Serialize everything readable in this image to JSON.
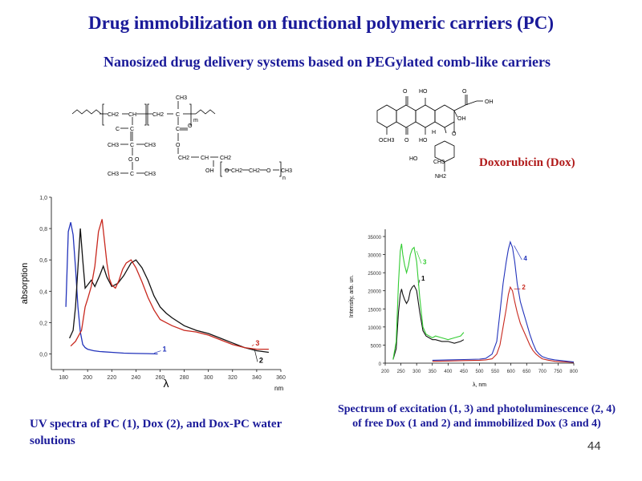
{
  "slide": {
    "title": "Drug immobilization on functional polymeric carriers (PC)",
    "subtitle": "Nanosized drug delivery systems based on PEGylated comb-like carriers",
    "dox_label": "Doxorubicin  (Dox)",
    "caption_uv": "UV spectra of PC (1), Dox  (2), and Dox-PC water  solutions",
    "caption_pl": "Spectrum of excitation (1, 3) and photoluminescence (2, 4) of free Dox (1 and 2) and immobilized Dox (3 and 4)",
    "page_number": "44"
  },
  "structures": {
    "polymer_atoms": [
      "CH3",
      "CH2",
      "CH",
      "CH2",
      "C",
      "C",
      "C",
      "CH3",
      "C",
      "CH3",
      "O",
      "O",
      "O",
      "CH3",
      "C",
      "CH3",
      "CH3",
      "C",
      "O",
      "O",
      "CH2",
      "CH",
      "CH2",
      "OH",
      "O",
      "CH2",
      "CH2",
      "O",
      "CH3",
      "m",
      "n"
    ],
    "dox_atoms": [
      "O",
      "HO",
      "O",
      "OH",
      "OH",
      "OCH3",
      "O",
      "HO",
      "H",
      "O",
      "HO",
      "CH3",
      "NH2"
    ]
  },
  "colors": {
    "heading": "#1a1a99",
    "dox_label": "#b01a1a",
    "black_series": "#111111",
    "red_series": "#c8281e",
    "blue_series": "#2233bb",
    "green_series": "#33cc33"
  },
  "chart_data": [
    {
      "type": "line",
      "title": "",
      "xlabel": "λ",
      "x_unit": "nm",
      "ylabel": "absorption",
      "xlim": [
        170,
        360
      ],
      "ylim": [
        -0.1,
        1.0
      ],
      "x_ticks": [
        "180",
        "200",
        "220",
        "240",
        "260",
        "280",
        "300",
        "320",
        "340",
        "360"
      ],
      "y_ticks": [
        "0,0",
        "0,2",
        "0,4",
        "0,6",
        "0,8",
        "1,0"
      ],
      "grid": false,
      "series": [
        {
          "name": "1",
          "color": "#2233bb",
          "x": [
            182,
            184,
            186,
            188,
            190,
            192,
            194,
            196,
            198,
            200,
            205,
            210,
            220,
            230,
            240,
            250,
            258
          ],
          "y": [
            0.3,
            0.78,
            0.84,
            0.76,
            0.55,
            0.3,
            0.14,
            0.06,
            0.04,
            0.03,
            0.02,
            0.015,
            0.01,
            0.005,
            0.003,
            0.002,
            0.0
          ]
        },
        {
          "name": "2",
          "color": "#111111",
          "x": [
            185,
            188,
            190,
            192,
            194,
            196,
            198,
            200,
            203,
            206,
            210,
            213,
            216,
            220,
            225,
            230,
            236,
            240,
            245,
            250,
            255,
            260,
            265,
            270,
            280,
            290,
            300,
            310,
            320,
            330,
            340,
            350
          ],
          "y": [
            0.1,
            0.15,
            0.3,
            0.55,
            0.8,
            0.6,
            0.42,
            0.44,
            0.47,
            0.43,
            0.5,
            0.56,
            0.49,
            0.43,
            0.45,
            0.5,
            0.58,
            0.6,
            0.55,
            0.47,
            0.37,
            0.3,
            0.26,
            0.23,
            0.18,
            0.15,
            0.13,
            0.1,
            0.07,
            0.04,
            0.02,
            0.01
          ]
        },
        {
          "name": "3",
          "color": "#c8281e",
          "x": [
            186,
            190,
            195,
            198,
            200,
            203,
            206,
            209,
            212,
            214,
            216,
            218,
            220,
            223,
            226,
            229,
            232,
            236,
            240,
            245,
            250,
            255,
            260,
            265,
            270,
            280,
            290,
            300,
            310,
            320,
            330,
            340,
            350
          ],
          "y": [
            0.05,
            0.08,
            0.15,
            0.3,
            0.35,
            0.43,
            0.56,
            0.78,
            0.86,
            0.72,
            0.58,
            0.48,
            0.44,
            0.42,
            0.47,
            0.54,
            0.58,
            0.6,
            0.55,
            0.46,
            0.36,
            0.28,
            0.22,
            0.2,
            0.18,
            0.15,
            0.14,
            0.12,
            0.09,
            0.06,
            0.04,
            0.03,
            0.03
          ]
        }
      ],
      "annotations": [
        "1",
        "2",
        "3"
      ]
    },
    {
      "type": "line",
      "title": "",
      "xlabel": "λ, nm",
      "ylabel": "Intensity, arb. un.",
      "xlim": [
        200,
        800
      ],
      "ylim": [
        0,
        37000
      ],
      "x_ticks": [
        "200",
        "250",
        "300",
        "350",
        "400",
        "450",
        "500",
        "550",
        "600",
        "650",
        "700",
        "750",
        "800"
      ],
      "y_ticks": [
        "0",
        "5000",
        "10000",
        "15000",
        "20000",
        "25000",
        "30000",
        "35000"
      ],
      "grid": false,
      "series": [
        {
          "name": "1",
          "color": "#111111",
          "x": [
            225,
            235,
            242,
            248,
            252,
            256,
            262,
            268,
            274,
            280,
            286,
            292,
            300,
            310,
            320,
            330,
            340,
            350,
            360,
            380,
            400,
            420,
            440,
            450
          ],
          "y": [
            1000,
            4000,
            14000,
            19000,
            20500,
            19000,
            17500,
            16500,
            17500,
            20000,
            21000,
            21500,
            20000,
            14000,
            9000,
            7500,
            7000,
            6500,
            6500,
            6000,
            6000,
            5500,
            6000,
            6500
          ]
        },
        {
          "name": "3",
          "color": "#33cc33",
          "x": [
            225,
            235,
            242,
            248,
            252,
            256,
            262,
            268,
            274,
            280,
            286,
            292,
            300,
            310,
            320,
            330,
            340,
            350,
            360,
            380,
            400,
            420,
            440,
            450
          ],
          "y": [
            1000,
            6000,
            22000,
            31000,
            33000,
            30000,
            27000,
            25000,
            27000,
            30000,
            31500,
            32000,
            28000,
            18000,
            10000,
            8000,
            7500,
            7000,
            7500,
            7000,
            6500,
            7000,
            7500,
            8500
          ]
        },
        {
          "name": "2",
          "color": "#c8281e",
          "x": [
            350,
            400,
            450,
            500,
            520,
            540,
            555,
            565,
            575,
            585,
            592,
            598,
            605,
            612,
            620,
            630,
            640,
            650,
            660,
            670,
            680,
            690,
            700,
            720,
            740,
            760,
            780,
            800
          ],
          "y": [
            500,
            600,
            700,
            800,
            900,
            1200,
            2500,
            5000,
            10000,
            15000,
            19000,
            21000,
            20000,
            17000,
            14000,
            11000,
            9000,
            7000,
            5000,
            3500,
            2500,
            1800,
            1200,
            800,
            500,
            400,
            300,
            200
          ]
        },
        {
          "name": "4",
          "color": "#2233bb",
          "x": [
            350,
            400,
            450,
            500,
            520,
            540,
            555,
            565,
            575,
            585,
            592,
            598,
            605,
            612,
            620,
            630,
            640,
            650,
            660,
            670,
            680,
            690,
            700,
            720,
            740,
            760,
            780,
            800
          ],
          "y": [
            800,
            900,
            1000,
            1100,
            1300,
            2500,
            6000,
            14000,
            22000,
            28000,
            31500,
            33500,
            32000,
            28000,
            22000,
            17000,
            14000,
            11000,
            8000,
            5500,
            3500,
            2500,
            1800,
            1200,
            900,
            700,
            500,
            300
          ]
        }
      ],
      "annotations": [
        "1",
        "2",
        "3",
        "4"
      ]
    }
  ]
}
